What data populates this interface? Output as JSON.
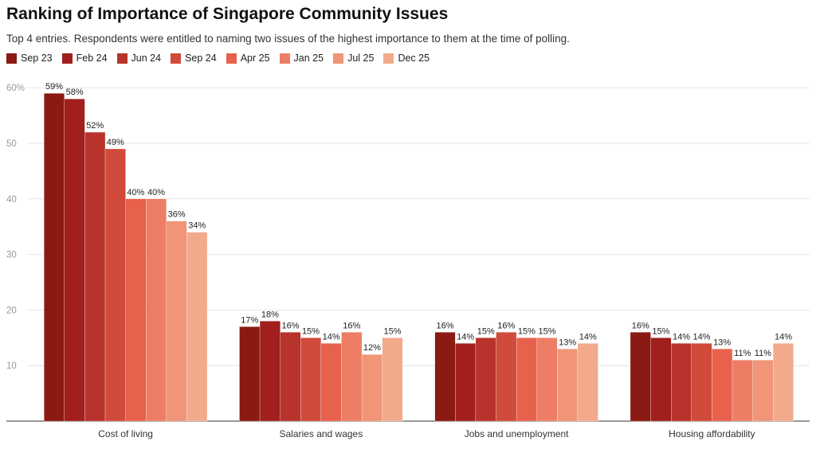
{
  "chart_data": {
    "type": "bar",
    "title": "Ranking of Importance of Singapore Community Issues",
    "subtitle": "Top 4 entries. Respondents were entitled to naming two issues of the highest importance to them at the time of polling.",
    "categories": [
      "Cost of living",
      "Salaries and wages",
      "Jobs and unemployment",
      "Housing affordability"
    ],
    "series": [
      {
        "name": "Sep 23",
        "color": "#8B1A12",
        "values": [
          59,
          17,
          16,
          16
        ]
      },
      {
        "name": "Feb 24",
        "color": "#A11F1C",
        "values": [
          58,
          18,
          14,
          15
        ]
      },
      {
        "name": "Jun 24",
        "color": "#B8332B",
        "values": [
          52,
          16,
          15,
          14
        ]
      },
      {
        "name": "Sep 24",
        "color": "#D04B3B",
        "values": [
          49,
          15,
          16,
          14
        ]
      },
      {
        "name": "Apr 25",
        "color": "#E8614D",
        "values": [
          40,
          14,
          15,
          13
        ]
      },
      {
        "name": "Jan 25",
        "color": "#EE7D66",
        "values": [
          40,
          16,
          15,
          11
        ]
      },
      {
        "name": "Jul 25",
        "color": "#F09578",
        "values": [
          36,
          12,
          13,
          11
        ]
      },
      {
        "name": "Dec 25",
        "color": "#F2AA8B",
        "values": [
          34,
          15,
          14,
          14
        ]
      }
    ],
    "yticks": [
      "10",
      "20",
      "30",
      "40",
      "50",
      "60%"
    ],
    "ylim": [
      0,
      60
    ],
    "grid": true,
    "legend": "top-left",
    "value_suffix": "%"
  }
}
